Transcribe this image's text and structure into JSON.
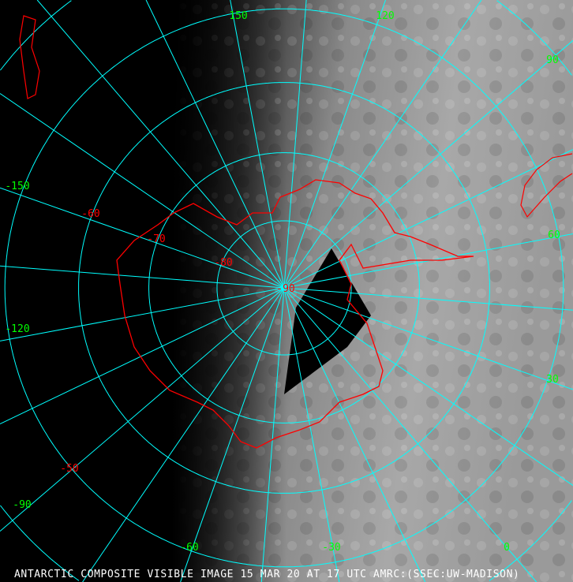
{
  "caption": "ANTARCTIC COMPOSITE VISIBLE IMAGE 15 MAR 20 AT 17 UTC AMRC:(SSEC:UW-MADISON)",
  "projection": "polar stereographic, south pole centered",
  "colors": {
    "grid": "#00ffff",
    "coastline": "#ff0000",
    "longitude_labels": "#00ff00",
    "latitude_labels": "#ff0000",
    "caption": "#ffffff",
    "night": "#000000",
    "day_clouds": "#b4b4b4"
  },
  "latitude_labels": [
    "-90",
    "-80",
    "-70",
    "-60",
    "-50"
  ],
  "longitude_labels": [
    "150",
    "120",
    "90",
    "60",
    "30",
    "0",
    "-30",
    "-60",
    "-90",
    "-120",
    "-150"
  ]
}
